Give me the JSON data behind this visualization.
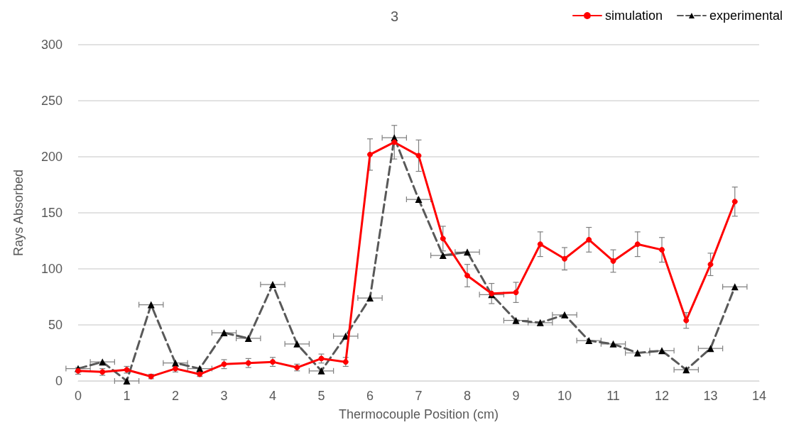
{
  "chart_data": {
    "type": "line",
    "title": "3",
    "xlabel": "Thermocouple Position (cm)",
    "ylabel": "Rays Absorbed",
    "x": [
      0,
      0.5,
      1,
      1.5,
      2,
      2.5,
      3,
      3.5,
      4,
      4.5,
      5,
      5.5,
      6,
      6.5,
      7,
      7.5,
      8,
      8.5,
      9,
      9.5,
      10,
      10.5,
      11,
      11.5,
      12,
      12.5,
      13,
      13.5
    ],
    "series": [
      {
        "name": "simulation",
        "color": "#ff0000",
        "marker": "circle",
        "line_style": "solid",
        "values": [
          9,
          8,
          10,
          4,
          11,
          6,
          15,
          16,
          17,
          12,
          20,
          17,
          202,
          213,
          201,
          127,
          94,
          78,
          79,
          122,
          109,
          126,
          107,
          122,
          117,
          54,
          104,
          160
        ],
        "errors": [
          3,
          3,
          3,
          2,
          3,
          2,
          4,
          4,
          4,
          3,
          4,
          4,
          14,
          15,
          14,
          11,
          10,
          9,
          9,
          11,
          10,
          11,
          10,
          11,
          11,
          7,
          10,
          13
        ]
      },
      {
        "name": "experimental",
        "color": "#595959",
        "marker": "triangle",
        "line_style": "dashed",
        "values": [
          11,
          17,
          0,
          68,
          16,
          11,
          43,
          38,
          86,
          33,
          9,
          40,
          74,
          217,
          162,
          112,
          115,
          77,
          54,
          52,
          59,
          36,
          33,
          25,
          27,
          10,
          29,
          84
        ],
        "xerrors": [
          0.25,
          0.25,
          0.25,
          0.25,
          0.25,
          0.25,
          0.25,
          0.25,
          0.25,
          0.25,
          0.25,
          0.25,
          0.25,
          0.25,
          0.25,
          0.25,
          0.25,
          0.25,
          0.25,
          0.25,
          0.25,
          0.25,
          0.25,
          0.25,
          0.25,
          0.25,
          0.25,
          0.25
        ]
      }
    ],
    "xlim": [
      0,
      14
    ],
    "xticks": [
      0,
      1,
      2,
      3,
      4,
      5,
      6,
      7,
      8,
      9,
      10,
      11,
      12,
      13,
      14
    ],
    "ylim": [
      0,
      300
    ],
    "yticks": [
      0,
      50,
      100,
      150,
      200,
      250,
      300
    ],
    "grid": "y",
    "legend": "top right"
  }
}
